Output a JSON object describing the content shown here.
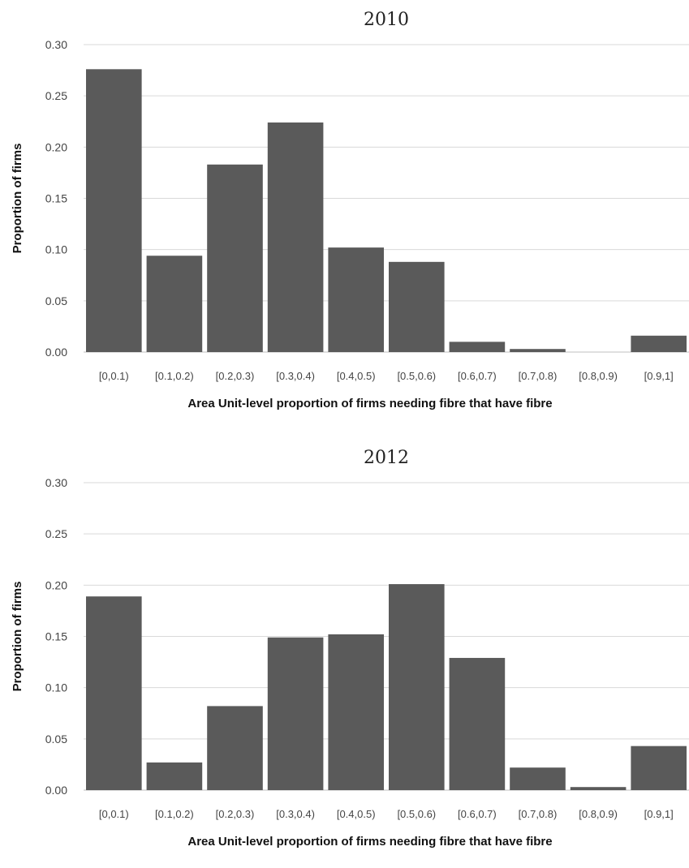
{
  "chart_data": [
    {
      "type": "bar",
      "title": "2010",
      "xlabel": "Area Unit-level proportion of firms needing fibre that have fibre",
      "ylabel": "Proportion of firms",
      "categories": [
        "[0,0.1)",
        "[0.1,0.2)",
        "[0.2,0.3)",
        "[0.3,0.4)",
        "[0.4,0.5)",
        "[0.5,0.6)",
        "[0.6,0.7)",
        "[0.7,0.8)",
        "[0.8,0.9)",
        "[0.9,1]"
      ],
      "values": [
        0.276,
        0.094,
        0.183,
        0.224,
        0.102,
        0.088,
        0.01,
        0.003,
        0.0,
        0.016
      ],
      "ylim": [
        0,
        0.3
      ],
      "yticks": [
        "0.00",
        "0.05",
        "0.10",
        "0.15",
        "0.20",
        "0.25",
        "0.30"
      ],
      "grid": true,
      "bar_color": "#5a5a5a"
    },
    {
      "type": "bar",
      "title": "2012",
      "xlabel": "Area Unit-level proportion of firms needing fibre that have fibre",
      "ylabel": "Proportion of firms",
      "categories": [
        "[0,0.1)",
        "[0.1,0.2)",
        "[0.2,0.3)",
        "[0.3,0.4)",
        "[0.4,0.5)",
        "[0.5,0.6)",
        "[0.6,0.7)",
        "[0.7,0.8)",
        "[0.8,0.9)",
        "[0.9,1]"
      ],
      "values": [
        0.189,
        0.027,
        0.082,
        0.149,
        0.152,
        0.201,
        0.129,
        0.022,
        0.003,
        0.043
      ],
      "ylim": [
        0,
        0.3
      ],
      "yticks": [
        "0.00",
        "0.05",
        "0.10",
        "0.15",
        "0.20",
        "0.25",
        "0.30"
      ],
      "grid": true,
      "bar_color": "#5a5a5a"
    }
  ]
}
